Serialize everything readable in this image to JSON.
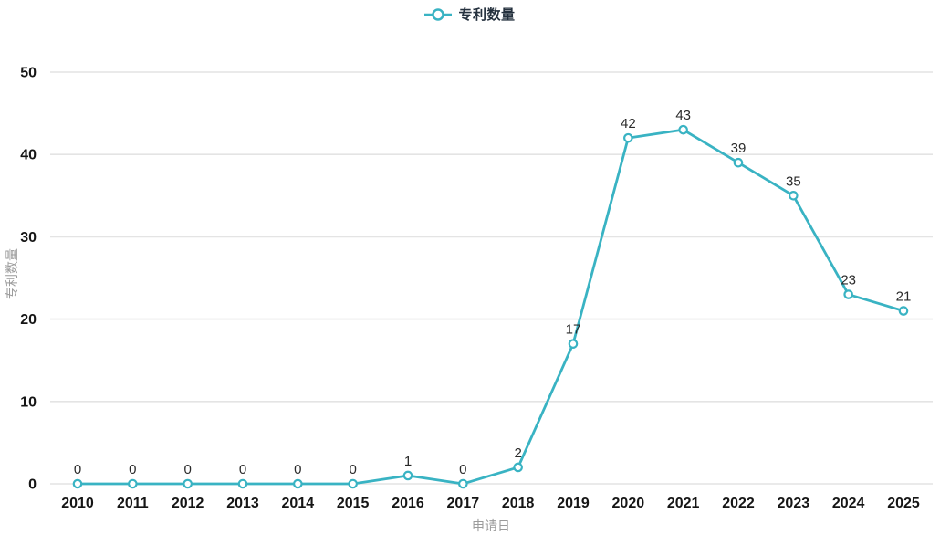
{
  "chart_data": {
    "type": "line",
    "title": "",
    "legend": "专利数量",
    "legend_position": "top-center",
    "xlabel": "申请日",
    "ylabel": "专利数量",
    "categories": [
      "2010",
      "2011",
      "2012",
      "2013",
      "2014",
      "2015",
      "2016",
      "2017",
      "2018",
      "2019",
      "2020",
      "2021",
      "2022",
      "2023",
      "2024",
      "2025"
    ],
    "values": [
      0,
      0,
      0,
      0,
      0,
      0,
      1,
      0,
      2,
      17,
      42,
      43,
      39,
      35,
      23,
      21
    ],
    "ylim": [
      0,
      50
    ],
    "yticks": [
      0,
      10,
      20,
      30,
      40,
      50
    ],
    "grid": true,
    "colors": {
      "line": "#39b3c3",
      "marker_fill": "#ffffff",
      "grid": "#e4e4e4",
      "tick_text": "#151515",
      "data_label": "#2a2a2a",
      "axis_title": "#9b9b9b",
      "legend_text": "#25313e"
    }
  }
}
